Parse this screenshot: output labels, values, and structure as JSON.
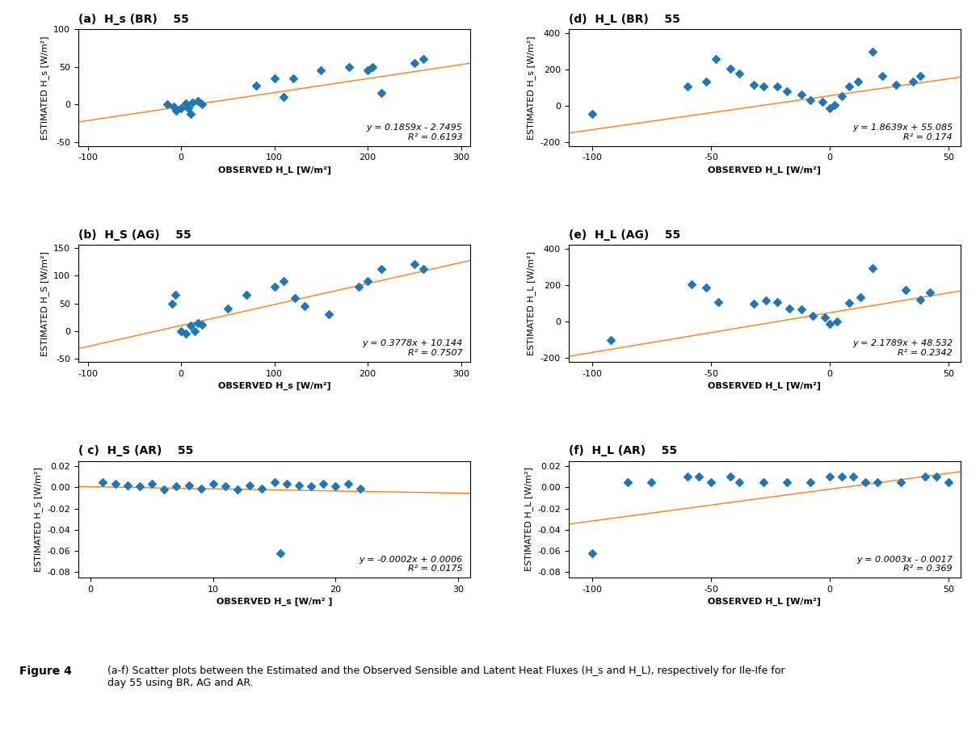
{
  "chart_data": [
    {
      "type": "scatter",
      "title": "(a)  H_s (BR)    55",
      "x_label": "OBSERVED H_L [W/m²]",
      "y_label": "ESTIMATED H_s [W/m²]",
      "x": [
        -15,
        -8,
        -5,
        0,
        5,
        8,
        10,
        12,
        18,
        22,
        80,
        100,
        110,
        120,
        150,
        180,
        200,
        205,
        215,
        250,
        260
      ],
      "values": [
        0,
        -3,
        -8,
        -5,
        2,
        -5,
        -12,
        3,
        5,
        0,
        25,
        35,
        10,
        35,
        45,
        50,
        45,
        50,
        15,
        55,
        60
      ],
      "marker": "diamond",
      "trendline": {
        "slope": 0.1859,
        "intercept": -2.7495
      },
      "annotations": [
        "y = 0.1859x - 2.7495",
        "R² = 0.6193"
      ],
      "xlim": [
        -110,
        310
      ],
      "ylim": [
        -55,
        100
      ],
      "xticks": [
        -100,
        0,
        100,
        200,
        300
      ],
      "yticks": [
        -50,
        0,
        50,
        100
      ]
    },
    {
      "type": "scatter",
      "title": "(d)  H_L (BR)    55",
      "x_label": "OBSERVED H_L [W/m²]",
      "y_label": "ESTIMATED H_s [W/m²]",
      "x": [
        -100,
        -60,
        -52,
        -48,
        -42,
        -38,
        -32,
        -28,
        -22,
        -18,
        -12,
        -8,
        -3,
        0,
        2,
        5,
        8,
        12,
        18,
        22,
        28,
        35,
        38
      ],
      "values": [
        -45,
        105,
        135,
        255,
        205,
        175,
        115,
        108,
        105,
        78,
        62,
        32,
        22,
        -12,
        5,
        52,
        105,
        135,
        295,
        165,
        115,
        135,
        165
      ],
      "marker": "diamond",
      "trendline": {
        "slope": 1.8639,
        "intercept": 55.085
      },
      "annotations": [
        "y = 1.8639x + 55.085",
        "R² = 0.174"
      ],
      "xlim": [
        -110,
        55
      ],
      "ylim": [
        -220,
        420
      ],
      "xticks": [
        -100,
        -50,
        0,
        50
      ],
      "yticks": [
        -200,
        0,
        200,
        400
      ]
    },
    {
      "type": "scatter",
      "title": "(b)  H_S (AG)    55",
      "x_label": "OBSERVED H_s [W/m²]",
      "y_label": "ESTIMATED H_S [W/m²]",
      "x": [
        -10,
        -6,
        0,
        5,
        10,
        15,
        18,
        22,
        50,
        70,
        100,
        110,
        122,
        132,
        158,
        190,
        200,
        215,
        250,
        260
      ],
      "values": [
        50,
        65,
        0,
        -5,
        10,
        0,
        15,
        12,
        40,
        65,
        80,
        90,
        60,
        45,
        30,
        80,
        90,
        112,
        120,
        112
      ],
      "marker": "diamond",
      "trendline": {
        "slope": 0.3778,
        "intercept": 10.144
      },
      "annotations": [
        "y = 0.3778x + 10.144",
        "R² = 0.7507"
      ],
      "xlim": [
        -110,
        310
      ],
      "ylim": [
        -55,
        155
      ],
      "xticks": [
        -100,
        0,
        100,
        200,
        300
      ],
      "yticks": [
        -50,
        0,
        50,
        100,
        150
      ]
    },
    {
      "type": "scatter",
      "title": "(e)  H_L (AG)    55",
      "x_label": "OBSERVED H_L [W/m²]",
      "y_label": "ESTIMATED H_L [W/m²]",
      "x": [
        -92,
        -58,
        -52,
        -47,
        -32,
        -27,
        -22,
        -17,
        -12,
        -7,
        -2,
        0,
        3,
        8,
        13,
        18,
        32,
        38,
        42
      ],
      "values": [
        -100,
        205,
        185,
        105,
        98,
        115,
        105,
        72,
        68,
        32,
        22,
        -12,
        2,
        102,
        135,
        292,
        172,
        122,
        162
      ],
      "marker": "diamond",
      "trendline": {
        "slope": 2.1789,
        "intercept": 48.532
      },
      "annotations": [
        "y = 2.1789x + 48.532",
        "R² = 0.2342"
      ],
      "xlim": [
        -110,
        55
      ],
      "ylim": [
        -220,
        420
      ],
      "xticks": [
        -100,
        -50,
        0,
        50
      ],
      "yticks": [
        -200,
        0,
        200,
        400
      ]
    },
    {
      "type": "scatter",
      "title": "( c)  H_S (AR)    55",
      "x_label": "OBSERVED H_s [W/m² ]",
      "y_label": "ESTIMATED H_S [W/m²]",
      "x": [
        1,
        2,
        3,
        4,
        5,
        6,
        7,
        8,
        9,
        10,
        11,
        12,
        13,
        14,
        15,
        16,
        17,
        18,
        19,
        20,
        21,
        22,
        15.5
      ],
      "values": [
        0.005,
        0.003,
        0.002,
        0.001,
        0.003,
        -0.002,
        0.001,
        0.002,
        -0.001,
        0.003,
        0.001,
        -0.002,
        0.002,
        -0.001,
        0.005,
        0.003,
        0.002,
        0.001,
        0.003,
        0.001,
        0.003,
        -0.001,
        -0.062
      ],
      "marker": "diamond",
      "trendline": {
        "slope": -0.0002,
        "intercept": 0.0006
      },
      "annotations": [
        "y = -0.0002x + 0.0006",
        "R² = 0.0175"
      ],
      "xlim": [
        -1,
        31
      ],
      "ylim": [
        -0.085,
        0.025
      ],
      "xticks": [
        0,
        10,
        20,
        30
      ],
      "yticks": [
        -0.08,
        -0.06,
        -0.04,
        -0.02,
        {
          "value": 0,
          "label": "0.00"
        },
        0.02
      ]
    },
    {
      "type": "scatter",
      "title": "(f)  H_L (AR)    55",
      "x_label": "OBSERVED H_L [W/m²]",
      "y_label": "ESTIMATED H_L [W/m²]",
      "x": [
        -100,
        -85,
        -75,
        -60,
        -55,
        -50,
        -42,
        -38,
        -28,
        -18,
        -8,
        0,
        5,
        10,
        15,
        20,
        30,
        40,
        45,
        50
      ],
      "values": [
        -0.062,
        0.005,
        0.005,
        0.01,
        0.01,
        0.005,
        0.01,
        0.005,
        0.005,
        0.005,
        0.005,
        0.01,
        0.01,
        0.01,
        0.005,
        0.005,
        0.005,
        0.01,
        0.01,
        0.005
      ],
      "marker": "diamond",
      "trendline": {
        "slope": 0.0003,
        "intercept": -0.0017
      },
      "annotations": [
        "y = 0.0003x - 0.0017",
        "R² = 0.369"
      ],
      "xlim": [
        -110,
        55
      ],
      "ylim": [
        -0.085,
        0.025
      ],
      "xticks": [
        -100,
        -50,
        0,
        50
      ],
      "yticks": [
        -0.08,
        -0.06,
        -0.04,
        -0.02,
        {
          "value": 0,
          "label": "0.00"
        },
        0.02
      ]
    }
  ],
  "figure_label": "Figure 4",
  "caption": "(a-f) Scatter plots between the Estimated and the Observed Sensible and Latent Heat Fluxes (H_s and H_L), respectively for Ile-Ife for\nday 55 using BR, AG and AR."
}
